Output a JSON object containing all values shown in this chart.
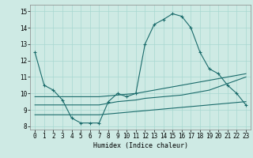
{
  "xlabel": "Humidex (Indice chaleur)",
  "bg_color": "#ceeae4",
  "grid_color": "#a8d8d0",
  "line_color": "#1a6b6b",
  "xlim": [
    -0.5,
    23.5
  ],
  "ylim": [
    7.8,
    15.4
  ],
  "xticks": [
    0,
    1,
    2,
    3,
    4,
    5,
    6,
    7,
    8,
    9,
    10,
    11,
    12,
    13,
    14,
    15,
    16,
    17,
    18,
    19,
    20,
    21,
    22,
    23
  ],
  "yticks": [
    8,
    9,
    10,
    11,
    12,
    13,
    14,
    15
  ],
  "line1_x": [
    0,
    1,
    2,
    3,
    4,
    5,
    6,
    7,
    8,
    9,
    10,
    11,
    12,
    13,
    14,
    15,
    16,
    17,
    18,
    19,
    20,
    21,
    22,
    23
  ],
  "line1_y": [
    12.5,
    10.5,
    10.2,
    9.6,
    8.5,
    8.2,
    8.2,
    8.2,
    9.5,
    10.0,
    9.8,
    10.0,
    13.0,
    14.2,
    14.5,
    14.85,
    14.7,
    14.0,
    12.5,
    11.5,
    11.2,
    10.5,
    10.0,
    9.3
  ],
  "line2_x": [
    0,
    2,
    3,
    4,
    5,
    6,
    7,
    8,
    9,
    10,
    11,
    12,
    13,
    14,
    15,
    16,
    17,
    18,
    19,
    20,
    21,
    22,
    23
  ],
  "line2_y": [
    8.7,
    8.7,
    8.7,
    8.7,
    8.7,
    8.7,
    8.7,
    8.75,
    8.8,
    8.85,
    8.9,
    8.95,
    9.0,
    9.05,
    9.1,
    9.15,
    9.2,
    9.25,
    9.3,
    9.35,
    9.4,
    9.45,
    9.5
  ],
  "line3_x": [
    0,
    2,
    3,
    4,
    5,
    6,
    7,
    8,
    9,
    10,
    11,
    12,
    13,
    14,
    15,
    16,
    17,
    18,
    19,
    20,
    21,
    22,
    23
  ],
  "line3_y": [
    9.3,
    9.3,
    9.3,
    9.3,
    9.3,
    9.3,
    9.3,
    9.4,
    9.5,
    9.55,
    9.6,
    9.7,
    9.75,
    9.8,
    9.85,
    9.9,
    10.0,
    10.1,
    10.2,
    10.4,
    10.6,
    10.8,
    11.0
  ],
  "line4_x": [
    0,
    2,
    3,
    4,
    5,
    6,
    7,
    8,
    9,
    10,
    11,
    12,
    13,
    14,
    15,
    16,
    17,
    18,
    19,
    20,
    21,
    22,
    23
  ],
  "line4_y": [
    9.8,
    9.8,
    9.8,
    9.8,
    9.8,
    9.8,
    9.8,
    9.85,
    9.9,
    9.95,
    10.0,
    10.1,
    10.2,
    10.3,
    10.4,
    10.5,
    10.6,
    10.7,
    10.8,
    10.9,
    11.0,
    11.1,
    11.2
  ]
}
